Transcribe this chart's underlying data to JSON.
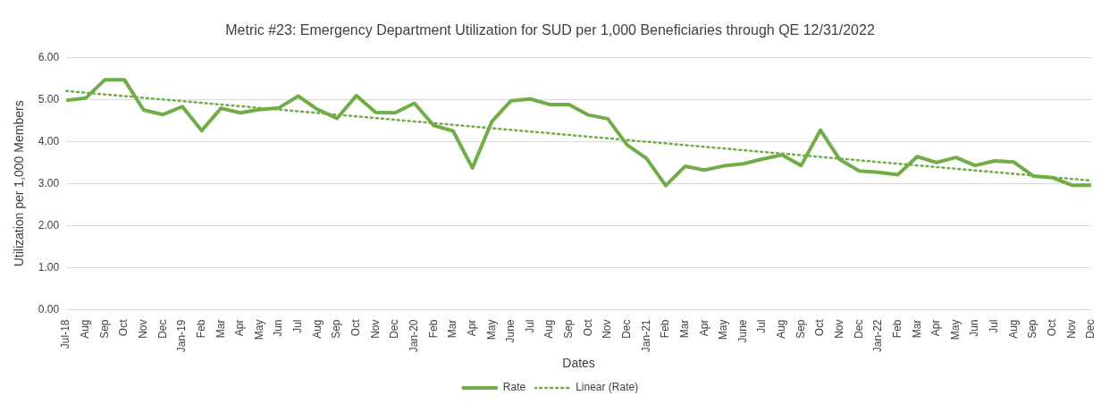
{
  "chart_data": {
    "type": "line",
    "title": "Metric #23: Emergency Department Utilization for SUD per 1,000 Beneficiaries through QE 12/31/2022",
    "xlabel": "Dates",
    "ylabel": "Utilization per 1,000 Members",
    "categories": [
      "Jul-18",
      "Aug",
      "Sep",
      "Oct",
      "Nov",
      "Dec",
      "Jan-19",
      "Feb",
      "Mar",
      "Apr",
      "May",
      "Jun",
      "Jul",
      "Aug",
      "Sep",
      "Oct",
      "Nov",
      "Dec",
      "Jan-20",
      "Feb",
      "Mar",
      "Apr",
      "May",
      "June",
      "Jul",
      "Aug",
      "Sep",
      "Oct",
      "Nov",
      "Dec",
      "Jan-21",
      "Feb",
      "Mar",
      "Apr",
      "May",
      "June",
      "Jul",
      "Aug",
      "Sep",
      "Oct",
      "Nov",
      "Dec",
      "Jan-22",
      "Feb",
      "Mar",
      "Apr",
      "May",
      "Jun",
      "Jul",
      "Aug",
      "Sep",
      "Oct",
      "Nov",
      "Dec"
    ],
    "series": [
      {
        "name": "Rate",
        "color": "#70ad47",
        "line_style": "solid",
        "values": [
          4.98,
          5.03,
          5.47,
          5.47,
          4.75,
          4.64,
          4.83,
          4.26,
          4.79,
          4.68,
          4.76,
          4.8,
          5.08,
          4.76,
          4.55,
          5.09,
          4.69,
          4.68,
          4.91,
          4.38,
          4.25,
          3.37,
          4.47,
          4.97,
          5.01,
          4.88,
          4.88,
          4.63,
          4.54,
          3.92,
          3.6,
          2.95,
          3.41,
          3.32,
          3.42,
          3.47,
          3.58,
          3.68,
          3.43,
          4.27,
          3.57,
          3.3,
          3.27,
          3.21,
          3.64,
          3.5,
          3.62,
          3.43,
          3.54,
          3.51,
          3.18,
          3.14,
          2.96,
          2.96
        ]
      },
      {
        "name": "Linear (Rate)",
        "color": "#70ad47",
        "line_style": "dotted",
        "values": [
          5.2,
          null,
          null,
          null,
          null,
          null,
          null,
          null,
          null,
          null,
          null,
          null,
          null,
          null,
          null,
          null,
          null,
          null,
          null,
          null,
          null,
          null,
          null,
          null,
          null,
          null,
          null,
          null,
          null,
          null,
          null,
          null,
          null,
          null,
          null,
          null,
          null,
          null,
          null,
          null,
          null,
          null,
          null,
          null,
          null,
          null,
          null,
          null,
          null,
          null,
          null,
          null,
          null,
          3.07
        ]
      }
    ],
    "ylim": [
      0,
      6
    ],
    "yticks": [
      {
        "value": 0,
        "label": "0.00"
      },
      {
        "value": 1,
        "label": "1.00"
      },
      {
        "value": 2,
        "label": "2.00"
      },
      {
        "value": 3,
        "label": "3.00"
      },
      {
        "value": 4,
        "label": "4.00"
      },
      {
        "value": 5,
        "label": "5.00"
      },
      {
        "value": 6,
        "label": "6.00"
      }
    ],
    "grid": "y",
    "legend": "bottom",
    "marker": "none"
  }
}
